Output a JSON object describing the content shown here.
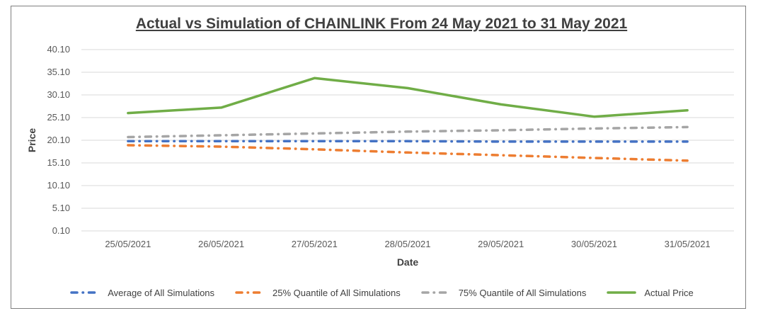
{
  "chart_data": {
    "type": "line",
    "title": "Actual vs Simulation of CHAINLINK From 24 May 2021 to 31 May 2021",
    "xlabel": "Date",
    "ylabel": "Price",
    "categories": [
      "25/05/2021",
      "26/05/2021",
      "27/05/2021",
      "28/05/2021",
      "29/05/2021",
      "30/05/2021",
      "31/05/2021"
    ],
    "ylim": [
      0.1,
      40.1
    ],
    "yticks": [
      "0.10",
      "5.10",
      "10.10",
      "15.10",
      "20.10",
      "25.10",
      "30.10",
      "35.10",
      "40.10"
    ],
    "grid": "horizontal",
    "legend_position": "bottom",
    "series": [
      {
        "name": "Average of All Simulations",
        "color": "#4472c4",
        "style": "dash-dot",
        "values": [
          19.9,
          19.9,
          19.9,
          19.9,
          19.8,
          19.8,
          19.8
        ]
      },
      {
        "name": "25% Quantile of All Simulations",
        "color": "#ed7d31",
        "style": "dash-dot",
        "values": [
          19.0,
          18.7,
          18.1,
          17.4,
          16.8,
          16.2,
          15.6
        ]
      },
      {
        "name": "75% Quantile of All Simulations",
        "color": "#a5a5a5",
        "style": "dash-dot",
        "values": [
          20.8,
          21.2,
          21.6,
          22.0,
          22.3,
          22.7,
          23.0
        ]
      },
      {
        "name": "Actual Price",
        "color": "#70ad47",
        "style": "solid",
        "values": [
          26.1,
          27.3,
          33.8,
          31.6,
          28.0,
          25.3,
          26.7
        ]
      }
    ]
  }
}
